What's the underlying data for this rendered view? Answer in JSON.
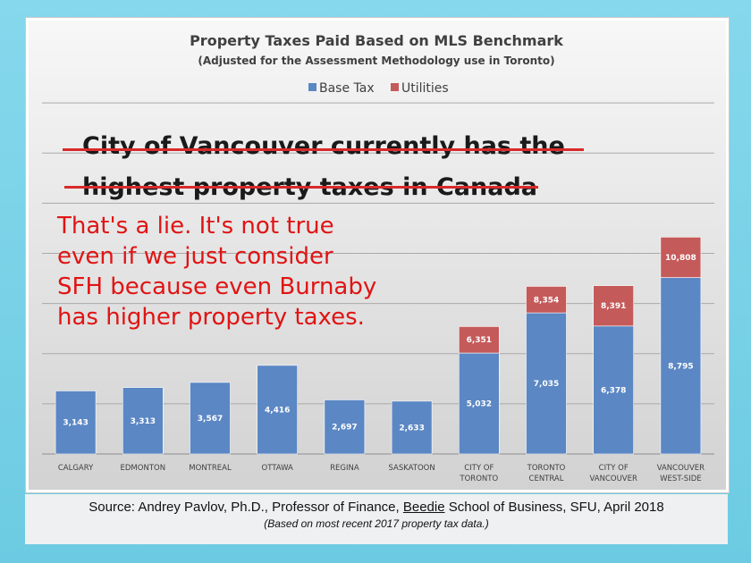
{
  "chart_data": {
    "type": "bar",
    "stacked": true,
    "title": "Property Taxes Paid Based on MLS Benchmark",
    "subtitle": "(Adjusted for the Assessment Methodology use in Toronto)",
    "legend_position": "top-center",
    "grid": true,
    "ylim": [
      0,
      21000
    ],
    "categories": [
      [
        "CALGARY"
      ],
      [
        "EDMONTON"
      ],
      [
        "MONTREAL"
      ],
      [
        "OTTAWA"
      ],
      [
        "REGINA"
      ],
      [
        "SASKATOON"
      ],
      [
        "CITY OF",
        "TORONTO"
      ],
      [
        "TORONTO",
        "CENTRAL"
      ],
      [
        "CITY OF",
        "VANCOUVER"
      ],
      [
        "VANCOUVER",
        "WEST-SIDE"
      ]
    ],
    "series": [
      {
        "name": "Base Tax",
        "color": "#5b87c4",
        "values": [
          3143,
          3313,
          3567,
          4416,
          2697,
          2633,
          5032,
          7035,
          6378,
          8795
        ],
        "labels": [
          "3,143",
          "3,313",
          "3,567",
          "4,416",
          "2,697",
          "2,633",
          "5,032",
          "7,035",
          "6,378",
          "8,795"
        ]
      },
      {
        "name": "Utilities",
        "color": "#c55a5a",
        "values": [
          0,
          0,
          0,
          0,
          0,
          0,
          1319,
          1319,
          2013,
          2013
        ],
        "labels": [
          "",
          "",
          "",
          "",
          "",
          "",
          "6,351",
          "8,354",
          "8,391",
          "10,808"
        ]
      }
    ]
  },
  "annotations": {
    "claim_lines": [
      "City of Vancouver currently has the",
      "highest property taxes in Canada"
    ],
    "rebuttal_lines": [
      "That's a lie. It's not true",
      "even if we just consider",
      "SFH because even Burnaby",
      "has higher property taxes."
    ]
  },
  "source": {
    "prefix": "Source: Andrey Pavlov, Ph.D., Professor of Finance, ",
    "underlined": "Beedie",
    "suffix": " School of Business, SFU, April 2018",
    "note": "(Based on most recent 2017 property tax data.)"
  }
}
